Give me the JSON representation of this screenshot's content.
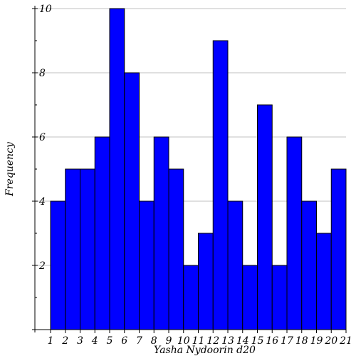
{
  "chart_data": {
    "type": "bar",
    "title": "",
    "xlabel": "Yasha Nydoorin d20",
    "ylabel": "Frequency",
    "xlim": [
      1,
      21
    ],
    "ylim": [
      0,
      10
    ],
    "xticks": [
      1,
      2,
      3,
      4,
      5,
      6,
      7,
      8,
      9,
      10,
      11,
      12,
      13,
      14,
      15,
      16,
      17,
      18,
      19,
      20,
      21
    ],
    "yticks": [
      2,
      4,
      6,
      8,
      10
    ],
    "grid": "horizontal",
    "bar_color": "#0000ff",
    "bins": [
      {
        "start": 1,
        "end": 2,
        "value": 4
      },
      {
        "start": 2,
        "end": 3,
        "value": 5
      },
      {
        "start": 3,
        "end": 4,
        "value": 5
      },
      {
        "start": 4,
        "end": 5,
        "value": 6
      },
      {
        "start": 5,
        "end": 6,
        "value": 10
      },
      {
        "start": 6,
        "end": 7,
        "value": 8
      },
      {
        "start": 7,
        "end": 8,
        "value": 4
      },
      {
        "start": 8,
        "end": 9,
        "value": 6
      },
      {
        "start": 9,
        "end": 10,
        "value": 5
      },
      {
        "start": 10,
        "end": 11,
        "value": 2
      },
      {
        "start": 11,
        "end": 12,
        "value": 3
      },
      {
        "start": 12,
        "end": 13,
        "value": 9
      },
      {
        "start": 13,
        "end": 14,
        "value": 4
      },
      {
        "start": 14,
        "end": 15,
        "value": 2
      },
      {
        "start": 15,
        "end": 16,
        "value": 7
      },
      {
        "start": 16,
        "end": 17,
        "value": 2
      },
      {
        "start": 17,
        "end": 18,
        "value": 6
      },
      {
        "start": 18,
        "end": 19,
        "value": 4
      },
      {
        "start": 19,
        "end": 20,
        "value": 3
      },
      {
        "start": 20,
        "end": 21,
        "value": 5
      }
    ]
  }
}
